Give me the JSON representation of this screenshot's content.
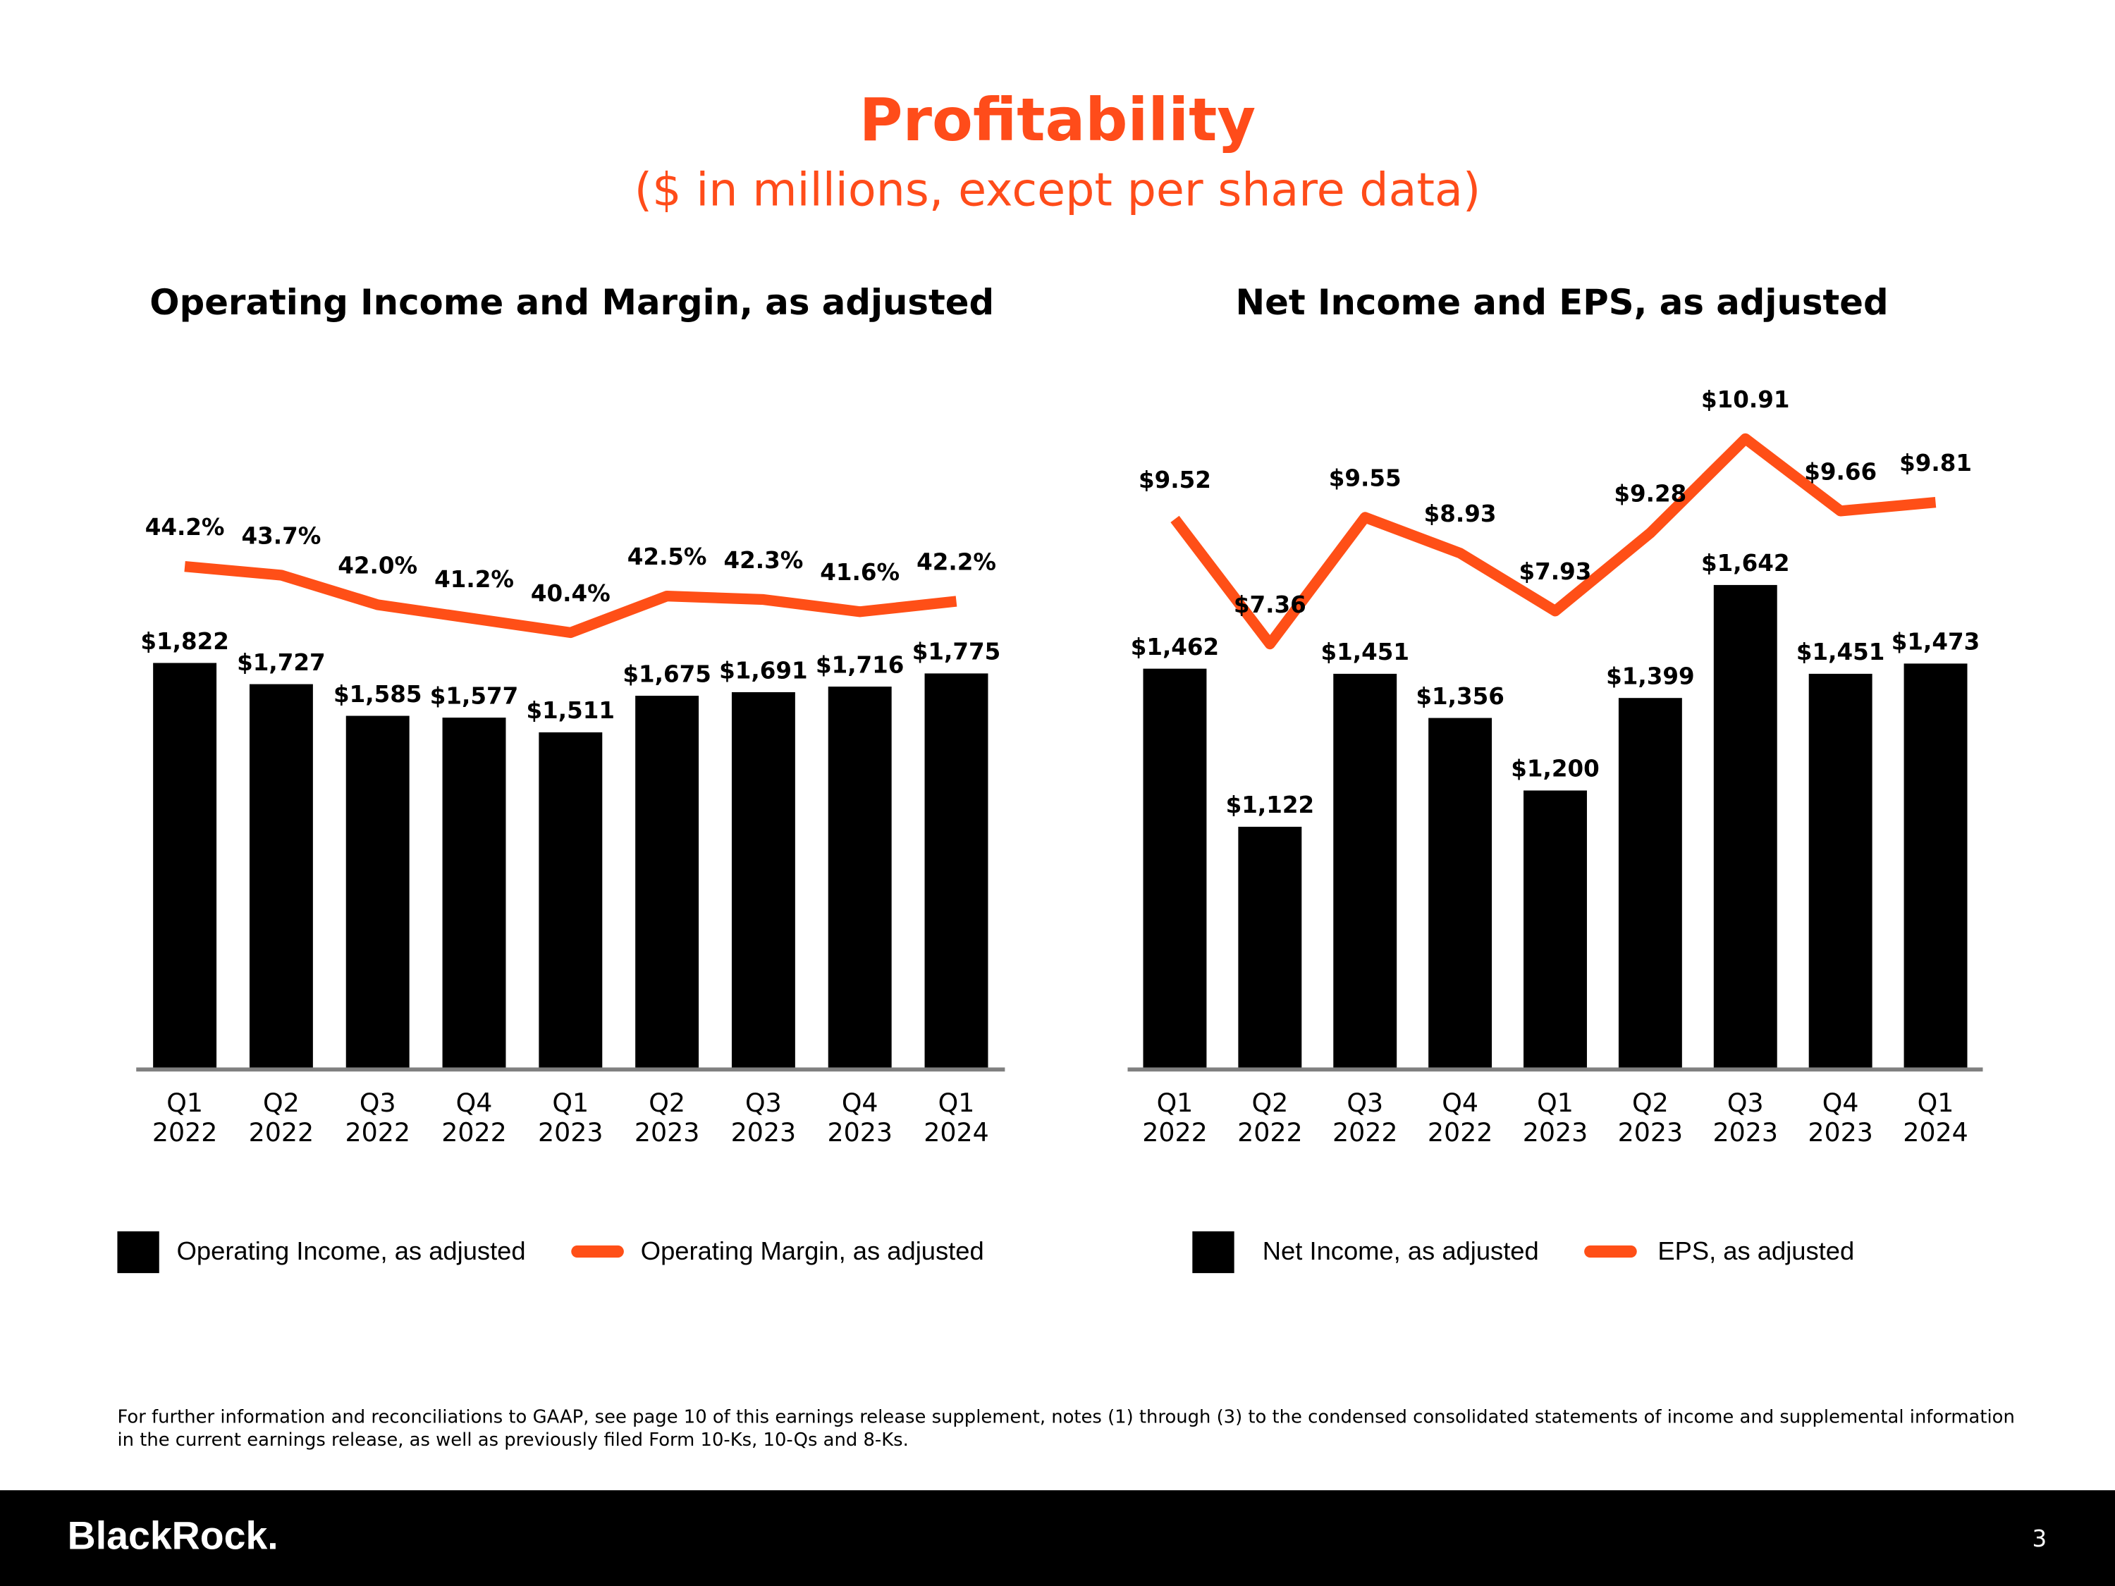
{
  "header": {
    "title": "Profitability",
    "subtitle": "($ in millions, except per share data)"
  },
  "chart_data": [
    {
      "type": "combo",
      "title": "Operating Income and Margin, as adjusted",
      "categories": [
        [
          "Q1",
          "2022"
        ],
        [
          "Q2",
          "2022"
        ],
        [
          "Q3",
          "2022"
        ],
        [
          "Q4",
          "2022"
        ],
        [
          "Q1",
          "2023"
        ],
        [
          "Q2",
          "2023"
        ],
        [
          "Q3",
          "2023"
        ],
        [
          "Q4",
          "2023"
        ],
        [
          "Q1",
          "2024"
        ]
      ],
      "series": [
        {
          "name": "Operating Income, as adjusted",
          "type": "bar",
          "color": "#000000",
          "values": [
            1822,
            1727,
            1585,
            1577,
            1511,
            1675,
            1691,
            1716,
            1775
          ],
          "value_labels": [
            "$1,822",
            "$1,727",
            "$1,585",
            "$1,577",
            "$1,511",
            "$1,675",
            "$1,691",
            "$1,716",
            "$1,775"
          ]
        },
        {
          "name": "Operating Margin, as adjusted",
          "type": "line",
          "axis": "y2",
          "color": "#ff4f17",
          "values": [
            44.2,
            43.7,
            42.0,
            41.2,
            40.4,
            42.5,
            42.3,
            41.6,
            42.2
          ],
          "value_labels": [
            "44.2%",
            "43.7%",
            "42.0%",
            "41.2%",
            "40.4%",
            "42.5%",
            "42.3%",
            "41.6%",
            "42.2%"
          ]
        }
      ],
      "ylim": [
        0,
        2980
      ],
      "y2lim": [
        15.3,
        53.5
      ]
    },
    {
      "type": "combo",
      "title": "Net Income and EPS, as adjusted",
      "categories": [
        [
          "Q1",
          "2022"
        ],
        [
          "Q2",
          "2022"
        ],
        [
          "Q3",
          "2022"
        ],
        [
          "Q4",
          "2022"
        ],
        [
          "Q1",
          "2023"
        ],
        [
          "Q2",
          "2023"
        ],
        [
          "Q3",
          "2023"
        ],
        [
          "Q4",
          "2023"
        ],
        [
          "Q1",
          "2024"
        ]
      ],
      "series": [
        {
          "name": "Net Income, as adjusted",
          "type": "bar",
          "color": "#000000",
          "values": [
            1462,
            1122,
            1451,
            1356,
            1200,
            1399,
            1642,
            1451,
            1473
          ],
          "value_labels": [
            "$1,462",
            "$1,122",
            "$1,451",
            "$1,356",
            "$1,200",
            "$1,399",
            "$1,642",
            "$1,451",
            "$1,473"
          ]
        },
        {
          "name": "EPS, as adjusted",
          "type": "line",
          "axis": "y2",
          "color": "#ff4f17",
          "values": [
            9.52,
            7.36,
            9.55,
            8.93,
            7.93,
            9.28,
            10.91,
            9.66,
            9.81
          ],
          "value_labels": [
            "$9.52",
            "$7.36",
            "$9.55",
            "$8.93",
            "$7.93",
            "$9.28",
            "$10.91",
            "$9.66",
            "$9.81"
          ]
        }
      ],
      "ylim": [
        600,
        2030
      ],
      "y2lim": [
        0,
        11.5
      ]
    }
  ],
  "footnote": "For further information and reconciliations to GAAP, see page 10 of this earnings release supplement, notes (1) through (3) to the condensed consolidated statements of income and supplemental information in the current earnings release, as well as previously filed Form 10-Ks, 10-Qs and 8-Ks.",
  "footer": {
    "logo": "BlackRock.",
    "page_number": "3"
  }
}
